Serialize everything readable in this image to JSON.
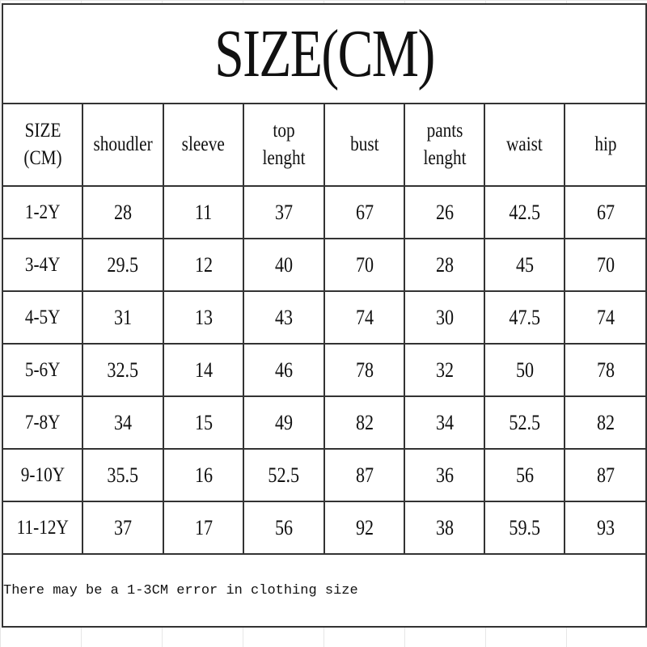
{
  "title": "SIZE(CM)",
  "headers": [
    "SIZE (CM)",
    "shoudler",
    "sleeve",
    "top lenght",
    "bust",
    "pants lenght",
    "waist",
    "hip"
  ],
  "rows": [
    [
      "1-2Y",
      "28",
      "11",
      "37",
      "67",
      "26",
      "42.5",
      "67"
    ],
    [
      "3-4Y",
      "29.5",
      "12",
      "40",
      "70",
      "28",
      "45",
      "70"
    ],
    [
      "4-5Y",
      "31",
      "13",
      "43",
      "74",
      "30",
      "47.5",
      "74"
    ],
    [
      "5-6Y",
      "32.5",
      "14",
      "46",
      "78",
      "32",
      "50",
      "78"
    ],
    [
      "7-8Y",
      "34",
      "15",
      "49",
      "82",
      "34",
      "52.5",
      "82"
    ],
    [
      "9-10Y",
      "35.5",
      "16",
      "52.5",
      "87",
      "36",
      "56",
      "87"
    ],
    [
      "11-12Y",
      "37",
      "17",
      "56",
      "92",
      "38",
      "59.5",
      "93"
    ]
  ],
  "note": "There may be a 1-3CM error in clothing size"
}
